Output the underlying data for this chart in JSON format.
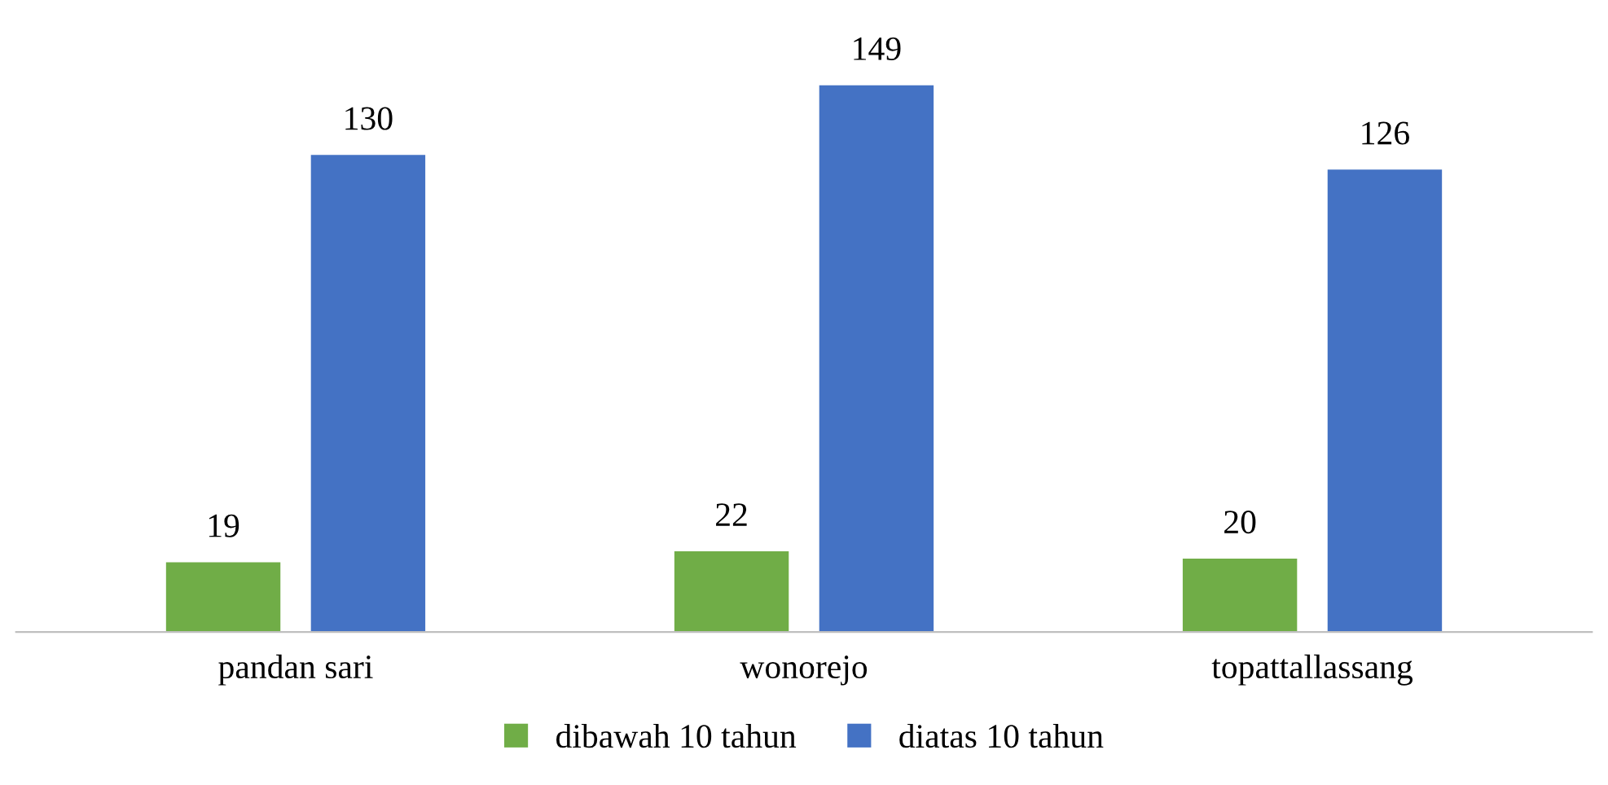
{
  "chart_data": {
    "type": "bar",
    "categories": [
      "pandan sari",
      "wonorejo",
      "topattallassang"
    ],
    "series": [
      {
        "name": "dibawah 10 tahun",
        "color": "#70ad47",
        "values": [
          19,
          22,
          20
        ]
      },
      {
        "name": "diatas 10 tahun",
        "color": "#4472c4",
        "values": [
          130,
          149,
          126
        ]
      }
    ],
    "data_labels": true,
    "legend": "bottom",
    "grid": false,
    "tick_labels": "x"
  }
}
